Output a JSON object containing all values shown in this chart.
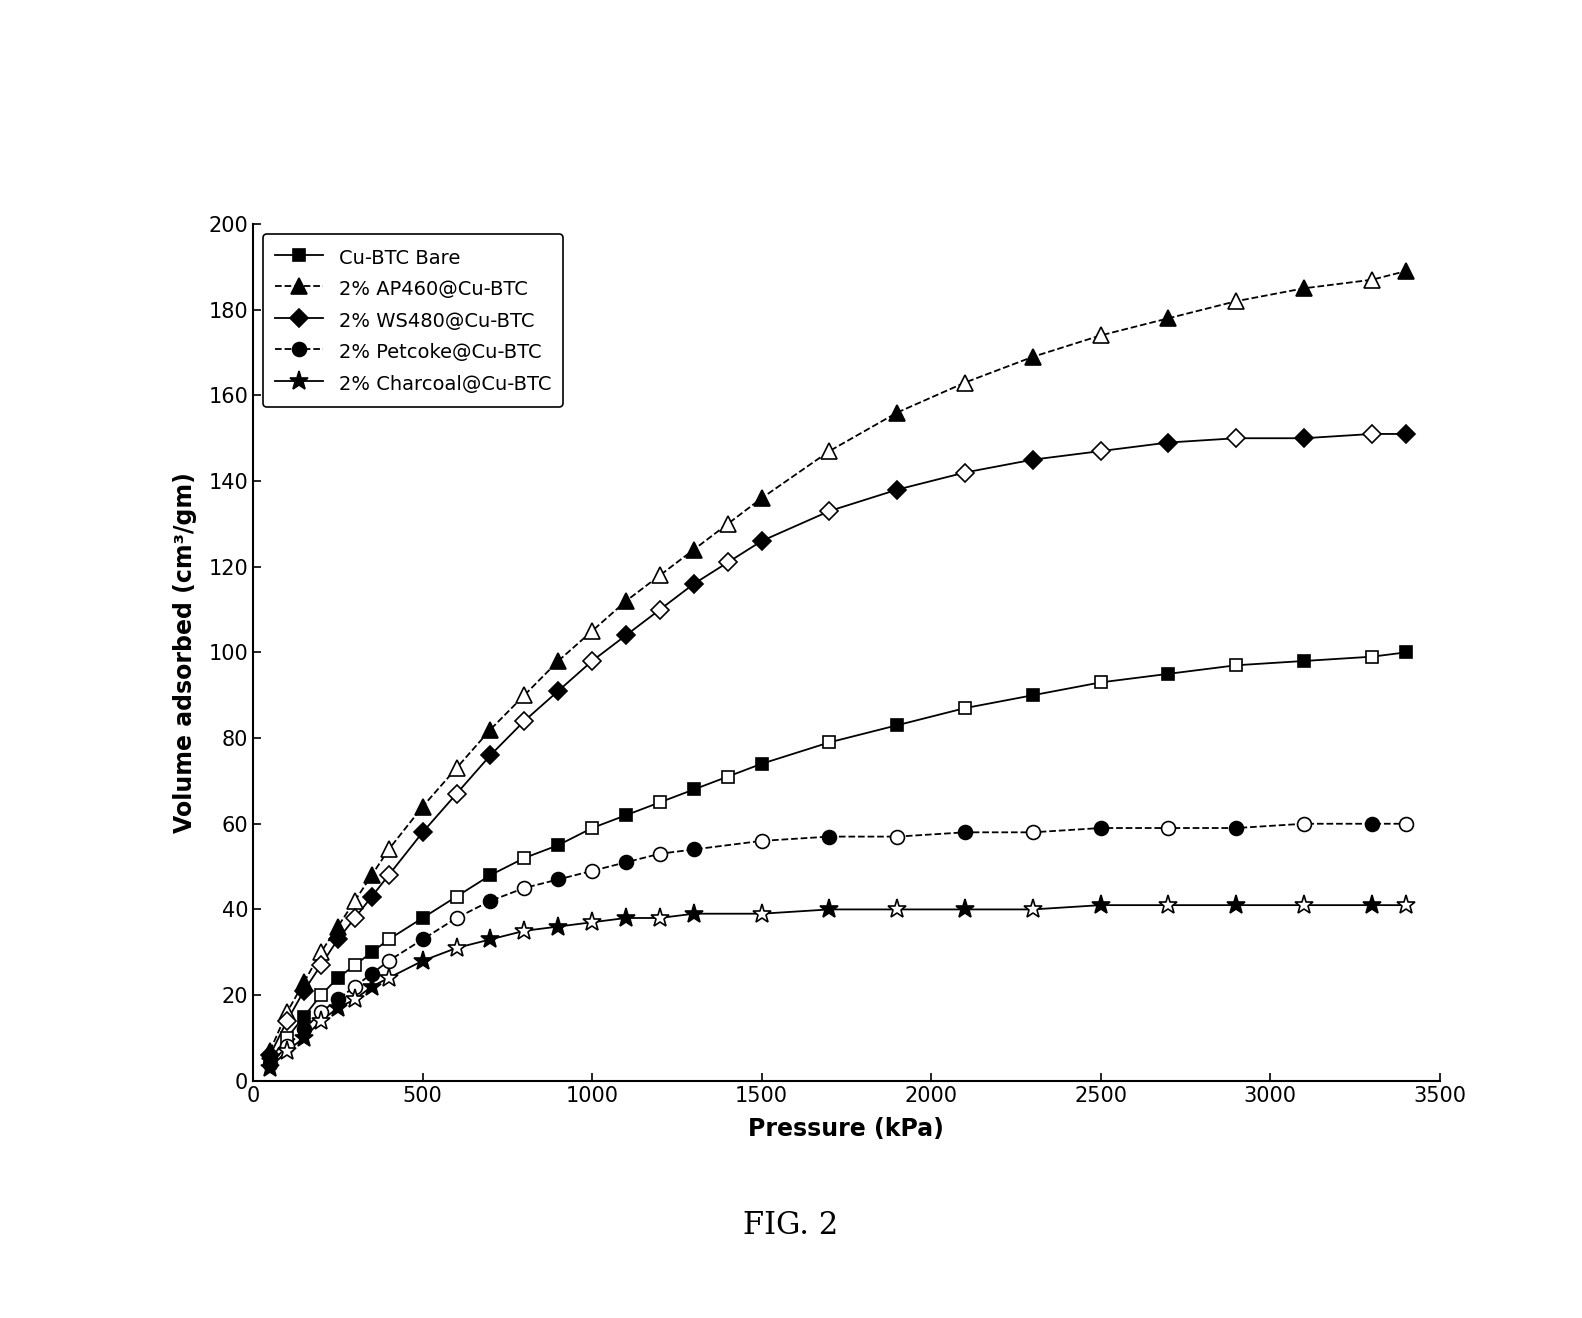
{
  "title": "FIG. 2",
  "xlabel": "Pressure (kPa)",
  "ylabel": "Volume adsorbed (cm³/gm)",
  "xlim": [
    0,
    3500
  ],
  "ylim": [
    0,
    200
  ],
  "xticks": [
    0,
    500,
    1000,
    1500,
    2000,
    2500,
    3000,
    3500
  ],
  "yticks": [
    0,
    20,
    40,
    60,
    80,
    100,
    120,
    140,
    160,
    180,
    200
  ],
  "series": [
    {
      "label": "Cu-BTC Bare",
      "color": "#000000",
      "marker_filled": "s",
      "x": [
        50,
        100,
        150,
        200,
        250,
        300,
        350,
        400,
        500,
        600,
        700,
        800,
        900,
        1000,
        1100,
        1200,
        1300,
        1400,
        1500,
        1700,
        1900,
        2100,
        2300,
        2500,
        2700,
        2900,
        3100,
        3300,
        3400
      ],
      "y": [
        5,
        10,
        15,
        20,
        24,
        27,
        30,
        33,
        38,
        43,
        48,
        52,
        55,
        59,
        62,
        65,
        68,
        71,
        74,
        79,
        83,
        87,
        90,
        93,
        95,
        97,
        98,
        99,
        100
      ],
      "linestyle": "-"
    },
    {
      "label": "2% AP460@Cu-BTC",
      "color": "#000000",
      "marker_filled": "^",
      "x": [
        50,
        100,
        150,
        200,
        250,
        300,
        350,
        400,
        500,
        600,
        700,
        800,
        900,
        1000,
        1100,
        1200,
        1300,
        1400,
        1500,
        1700,
        1900,
        2100,
        2300,
        2500,
        2700,
        2900,
        3100,
        3300,
        3400
      ],
      "y": [
        7,
        16,
        23,
        30,
        36,
        42,
        48,
        54,
        64,
        73,
        82,
        90,
        98,
        105,
        112,
        118,
        124,
        130,
        136,
        147,
        156,
        163,
        169,
        174,
        178,
        182,
        185,
        187,
        189
      ],
      "linestyle": "--"
    },
    {
      "label": "2% WS480@Cu-BTC",
      "color": "#000000",
      "marker_filled": "D",
      "x": [
        50,
        100,
        150,
        200,
        250,
        300,
        350,
        400,
        500,
        600,
        700,
        800,
        900,
        1000,
        1100,
        1200,
        1300,
        1400,
        1500,
        1700,
        1900,
        2100,
        2300,
        2500,
        2700,
        2900,
        3100,
        3300,
        3400
      ],
      "y": [
        6,
        14,
        21,
        27,
        33,
        38,
        43,
        48,
        58,
        67,
        76,
        84,
        91,
        98,
        104,
        110,
        116,
        121,
        126,
        133,
        138,
        142,
        145,
        147,
        149,
        150,
        150,
        151,
        151
      ],
      "linestyle": "-"
    },
    {
      "label": "2% Petcoke@Cu-BTC",
      "color": "#000000",
      "marker_filled": "o",
      "x": [
        50,
        100,
        150,
        200,
        250,
        300,
        350,
        400,
        500,
        600,
        700,
        800,
        900,
        1000,
        1100,
        1200,
        1300,
        1500,
        1700,
        1900,
        2100,
        2300,
        2500,
        2700,
        2900,
        3100,
        3300,
        3400
      ],
      "y": [
        4,
        8,
        12,
        16,
        19,
        22,
        25,
        28,
        33,
        38,
        42,
        45,
        47,
        49,
        51,
        53,
        54,
        56,
        57,
        57,
        58,
        58,
        59,
        59,
        59,
        60,
        60,
        60
      ],
      "linestyle": "--"
    },
    {
      "label": "2% Charcoal@Cu-BTC",
      "color": "#000000",
      "marker_filled": "*",
      "x": [
        50,
        100,
        150,
        200,
        250,
        300,
        350,
        400,
        500,
        600,
        700,
        800,
        900,
        1000,
        1100,
        1200,
        1300,
        1500,
        1700,
        1900,
        2100,
        2300,
        2500,
        2700,
        2900,
        3100,
        3300,
        3400
      ],
      "y": [
        3,
        7,
        10,
        14,
        17,
        19,
        22,
        24,
        28,
        31,
        33,
        35,
        36,
        37,
        38,
        38,
        39,
        39,
        40,
        40,
        40,
        40,
        41,
        41,
        41,
        41,
        41,
        41
      ],
      "linestyle": "-"
    }
  ],
  "background_color": "#ffffff",
  "title_fontsize": 22,
  "label_fontsize": 17,
  "tick_fontsize": 15,
  "legend_fontsize": 14,
  "marker_size_map": {
    "s": 9,
    "^": 11,
    "D": 9,
    "o": 10,
    "*": 14
  }
}
